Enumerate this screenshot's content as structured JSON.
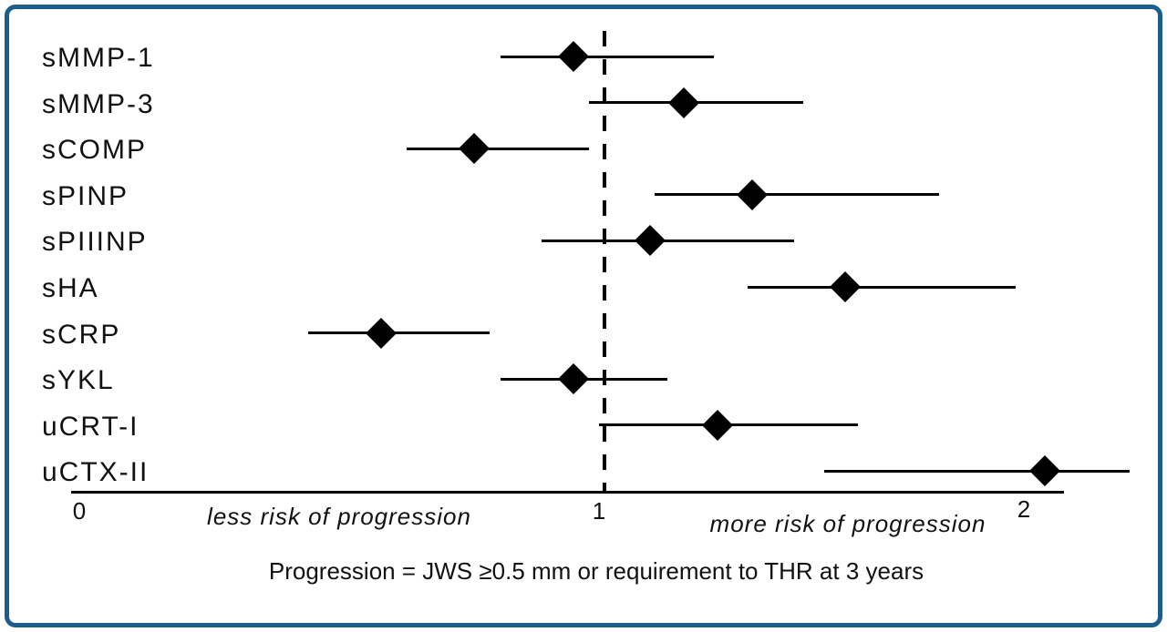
{
  "figure": {
    "background_color": "#ffffff",
    "border_color": "#1b5d8c",
    "ink_color": "#000000"
  },
  "chart_data": {
    "type": "forest",
    "title": "",
    "x_ticks": [
      "0",
      "1",
      "2"
    ],
    "x_tick_values": [
      0,
      1,
      2
    ],
    "xlim": [
      0,
      2.3
    ],
    "reference_line_x": 1,
    "grid": false,
    "axis_labels": {
      "left": "less risk of progression",
      "right": "more risk of progression"
    },
    "caption": "Progression = JWS ≥0.5 mm or requirement to THR at 3 years",
    "markers": [
      {
        "label": "sMMP-1",
        "estimate": 0.95,
        "ci_low": 0.81,
        "ci_high": 1.27
      },
      {
        "label": "sMMP-3",
        "estimate": 1.2,
        "ci_low": 0.98,
        "ci_high": 1.48
      },
      {
        "label": "sCOMP",
        "estimate": 0.76,
        "ci_low": 0.63,
        "ci_high": 0.98
      },
      {
        "label": "sPINP",
        "estimate": 1.36,
        "ci_low": 1.13,
        "ci_high": 1.8
      },
      {
        "label": "sPIIINP",
        "estimate": 1.12,
        "ci_low": 0.89,
        "ci_high": 1.46
      },
      {
        "label": "sHA",
        "estimate": 1.58,
        "ci_low": 1.35,
        "ci_high": 1.98
      },
      {
        "label": "sCRP",
        "estimate": 0.58,
        "ci_low": 0.44,
        "ci_high": 0.79
      },
      {
        "label": "sYKL",
        "estimate": 0.95,
        "ci_low": 0.81,
        "ci_high": 1.16
      },
      {
        "label": "uCRT-I",
        "estimate": 1.28,
        "ci_low": 1.0,
        "ci_high": 1.61
      },
      {
        "label": "uCTX-II",
        "estimate": 2.05,
        "ci_low": 1.53,
        "ci_high": 2.25
      }
    ]
  }
}
